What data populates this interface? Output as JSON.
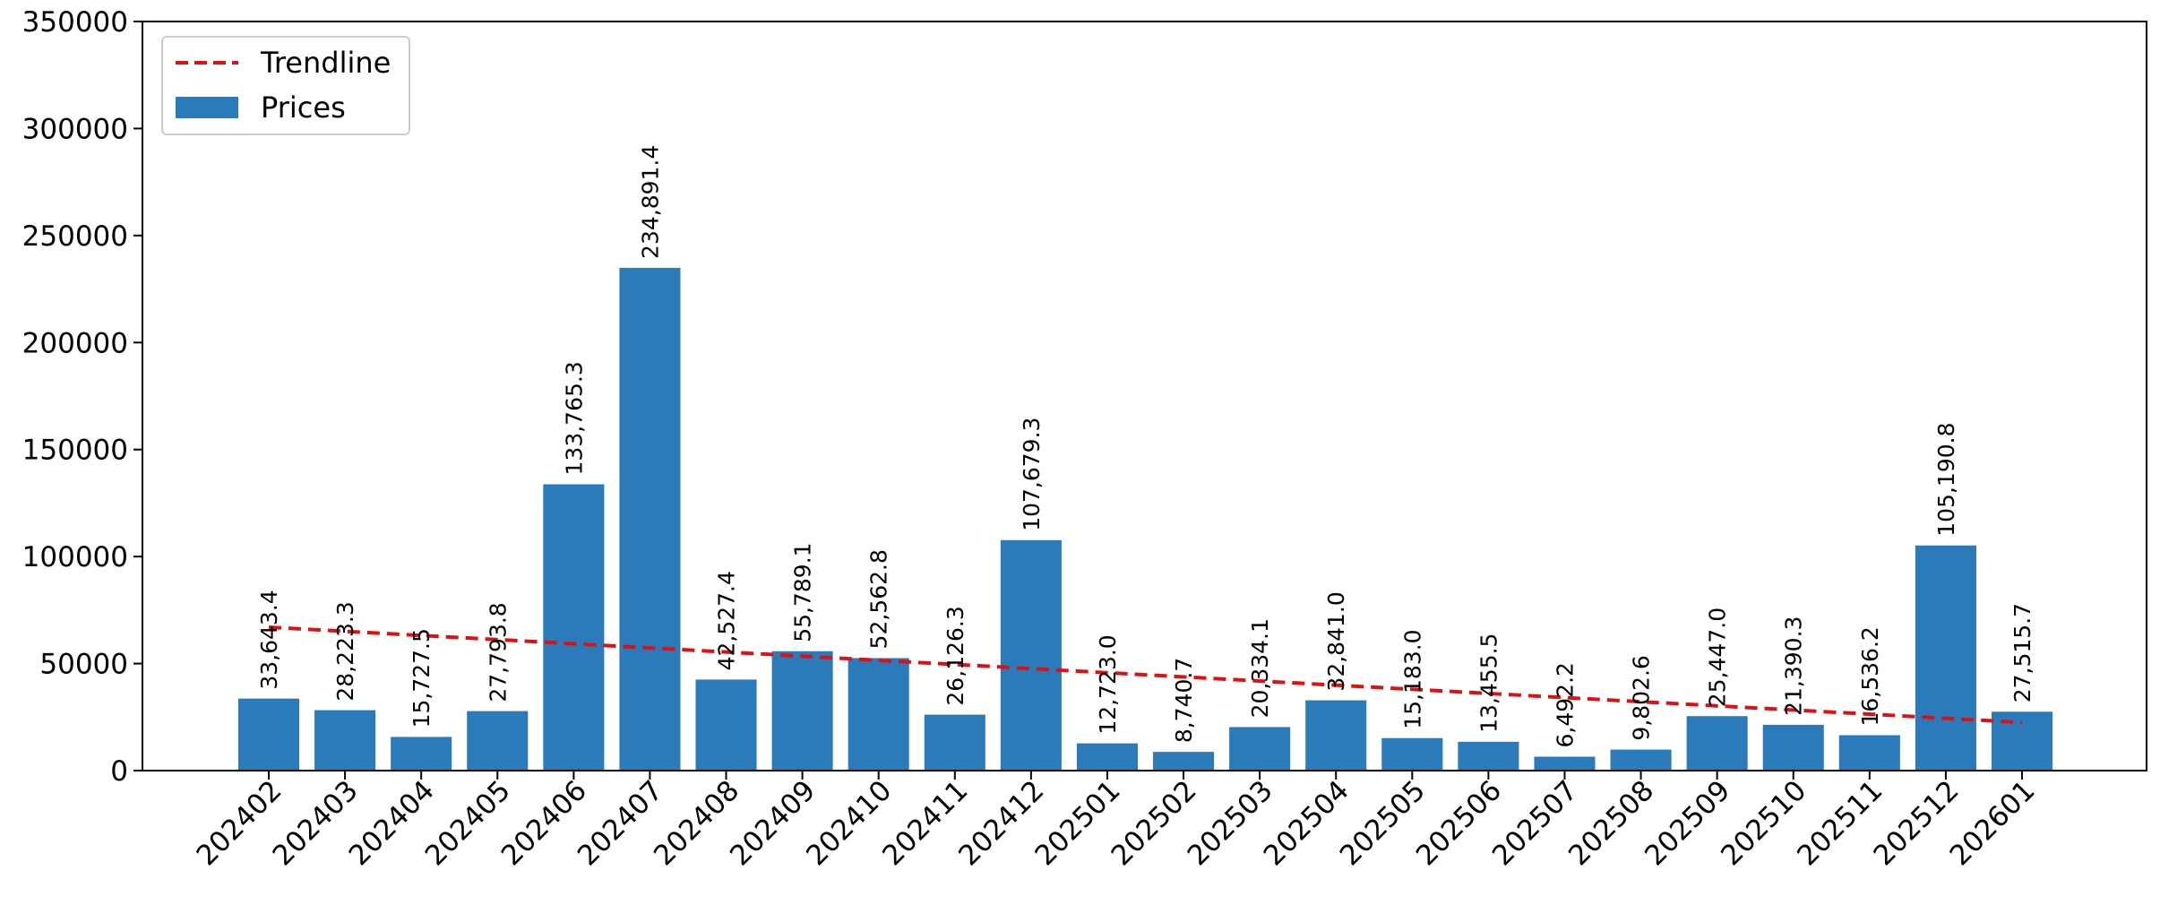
{
  "chart_data": {
    "type": "bar",
    "title": "",
    "xlabel": "",
    "ylabel": "",
    "ylim": [
      0,
      350000
    ],
    "yticks": [
      0,
      50000,
      100000,
      150000,
      200000,
      250000,
      300000,
      350000
    ],
    "grid": false,
    "legend_placement": "top-left",
    "categories": [
      "202402",
      "202403",
      "202404",
      "202405",
      "202406",
      "202407",
      "202408",
      "202409",
      "202410",
      "202411",
      "202412",
      "202501",
      "202502",
      "202503",
      "202504",
      "202505",
      "202506",
      "202507",
      "202508",
      "202509",
      "202510",
      "202511",
      "202512",
      "202601"
    ],
    "series": [
      {
        "name": "Prices",
        "color": "#2b7bba",
        "values": [
          33643.4,
          28223.3,
          15727.5,
          27793.8,
          133765.3,
          234891.4,
          42527.4,
          55789.1,
          52562.8,
          26126.3,
          107679.3,
          12723.0,
          8740.7,
          20334.1,
          32841.0,
          15183.0,
          13455.5,
          6492.2,
          9802.6,
          25447.0,
          21390.3,
          16536.2,
          105190.8,
          27515.7
        ],
        "labels": [
          "33,643.4",
          "28,223.3",
          "15,727.5",
          "27,793.8",
          "133,765.3",
          "234,891.4",
          "42,527.4",
          "55,789.1",
          "52,562.8",
          "26,126.3",
          "107,679.3",
          "12,723.0",
          "8,740.7",
          "20,334.1",
          "32,841.0",
          "15,183.0",
          "13,455.5",
          "6,492.2",
          "9,802.6",
          "25,447.0",
          "21,390.3",
          "16,536.2",
          "105,190.8",
          "27,515.7"
        ]
      }
    ],
    "trendline": {
      "name": "Trendline",
      "color": "#dd1111",
      "style": "dashed",
      "start": 67000,
      "end": 22500
    }
  }
}
